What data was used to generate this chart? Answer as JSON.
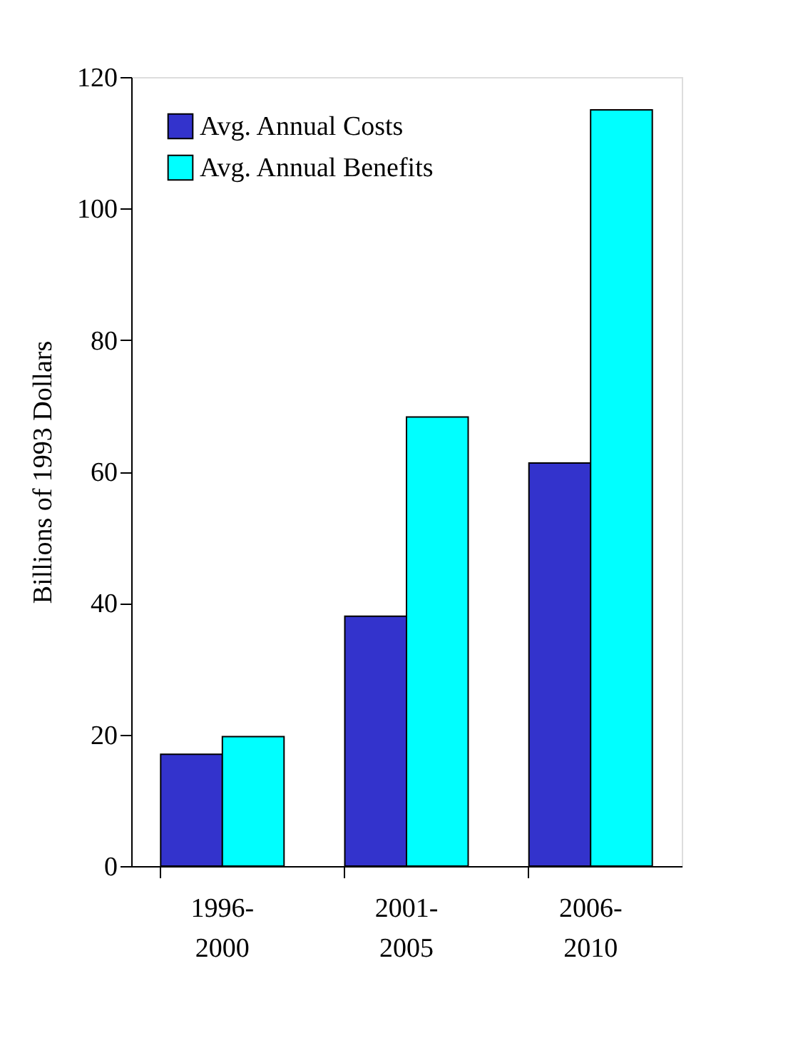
{
  "chart_data": {
    "type": "bar",
    "ylabel": "Billions of 1993 Dollars",
    "categories": [
      "1996-2000",
      "2001-2005",
      "2006-2010"
    ],
    "series": [
      {
        "name": "Avg. Annual Costs",
        "color": "#3333cc",
        "values": [
          17,
          38,
          61.3
        ]
      },
      {
        "name": "Avg. Annual Benefits",
        "color": "#00ffff",
        "values": [
          19.7,
          68.3,
          115
        ]
      }
    ],
    "ylim": [
      0,
      120
    ],
    "yticks": [
      0,
      20,
      40,
      60,
      80,
      100,
      120
    ],
    "grid": false,
    "legend": "top left"
  }
}
